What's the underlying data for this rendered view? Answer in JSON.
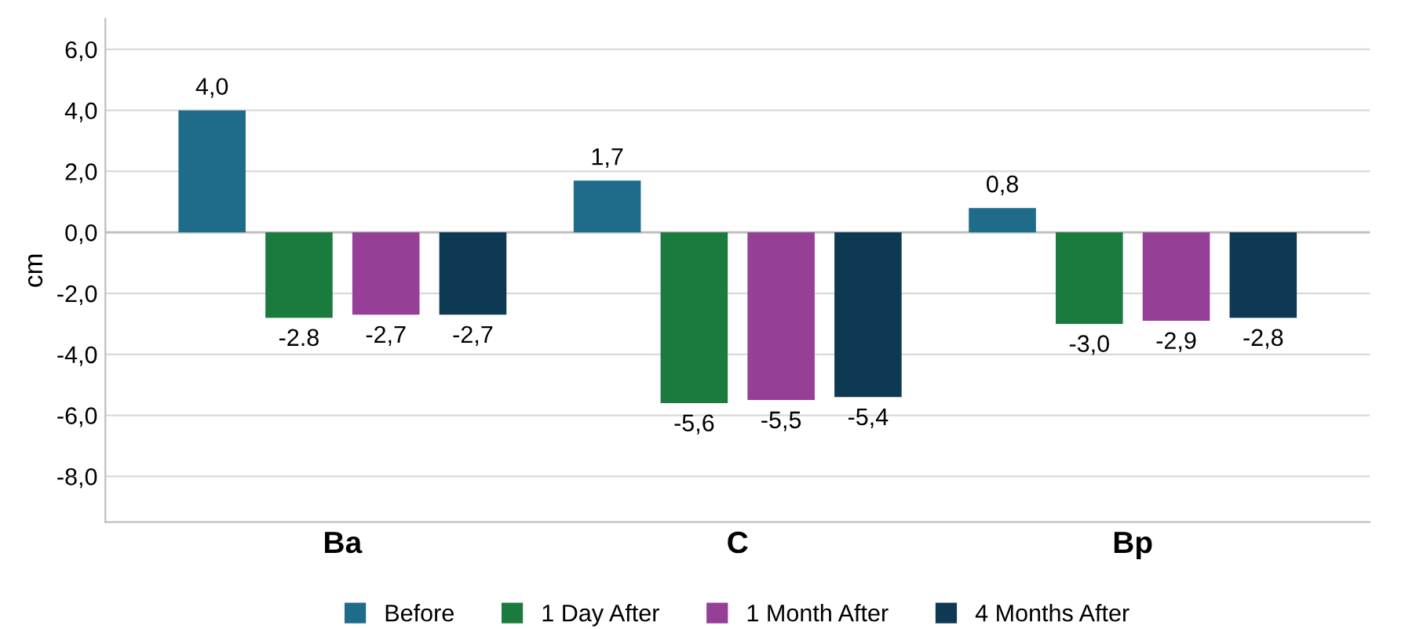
{
  "chart_data": {
    "type": "bar",
    "ylabel": "cm",
    "categories": [
      "Ba",
      "C",
      "Bp"
    ],
    "series": [
      {
        "name": "Before",
        "color": "#1f6b8a",
        "values": [
          4.0,
          1.7,
          0.8
        ],
        "value_labels": [
          "4,0",
          "1,7",
          "0,8"
        ]
      },
      {
        "name": "1 Day After",
        "color": "#1b7a3e",
        "values": [
          -2.8,
          -5.6,
          -3.0
        ],
        "value_labels": [
          "-2.8",
          "-5,6",
          "-3,0"
        ]
      },
      {
        "name": "1 Month After",
        "color": "#953f96",
        "values": [
          -2.7,
          -5.5,
          -2.9
        ],
        "value_labels": [
          "-2,7",
          "-5,5",
          "-2,9"
        ]
      },
      {
        "name": "4 Months After",
        "color": "#0d3a52",
        "values": [
          -2.7,
          -5.4,
          -2.8
        ],
        "value_labels": [
          "-2,7",
          "-5,4",
          "-2,8"
        ]
      }
    ],
    "ylim": [
      -9.5,
      7
    ],
    "yticks": [
      {
        "value": -8,
        "label": "-8,0"
      },
      {
        "value": -6,
        "label": "-6,0"
      },
      {
        "value": -4,
        "label": "-4,0"
      },
      {
        "value": -2,
        "label": "-2,0"
      },
      {
        "value": 0,
        "label": "0,0"
      },
      {
        "value": 2,
        "label": "2,0"
      },
      {
        "value": 4,
        "label": "4,0"
      },
      {
        "value": 6,
        "label": "6,0"
      }
    ],
    "grid": "y",
    "legend": "bottom"
  }
}
